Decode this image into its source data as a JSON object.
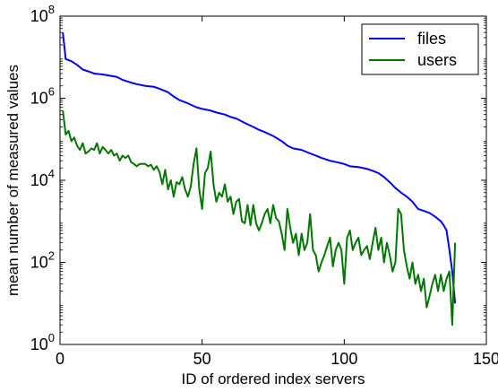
{
  "chart_data": {
    "type": "line",
    "title": "",
    "xlabel": "ID of ordered index servers",
    "ylabel": "mean number of measured values",
    "xlim": [
      0,
      150
    ],
    "ylim": [
      1,
      100000000
    ],
    "y_scale": "log",
    "grid": false,
    "legend_position": "top-right",
    "x_ticks": [
      {
        "value": 0,
        "label": "0"
      },
      {
        "value": 50,
        "label": "50"
      },
      {
        "value": 100,
        "label": "100"
      },
      {
        "value": 150,
        "label": "150"
      }
    ],
    "y_ticks": [
      {
        "value": 1,
        "base": "10",
        "exp": "0"
      },
      {
        "value": 100,
        "base": "10",
        "exp": "2"
      },
      {
        "value": 10000,
        "base": "10",
        "exp": "4"
      },
      {
        "value": 1000000,
        "base": "10",
        "exp": "6"
      },
      {
        "value": 100000000,
        "base": "10",
        "exp": "8"
      }
    ],
    "series": [
      {
        "name": "files",
        "color": "#0000ff",
        "points": [
          [
            1,
            40000000
          ],
          [
            2,
            9000000
          ],
          [
            4,
            8000000
          ],
          [
            6,
            6500000
          ],
          [
            8,
            5000000
          ],
          [
            10,
            4500000
          ],
          [
            12,
            4000000
          ],
          [
            15,
            3800000
          ],
          [
            18,
            3500000
          ],
          [
            20,
            3300000
          ],
          [
            22,
            2800000
          ],
          [
            25,
            2400000
          ],
          [
            27,
            2200000
          ],
          [
            30,
            2000000
          ],
          [
            33,
            1900000
          ],
          [
            35,
            1700000
          ],
          [
            38,
            1400000
          ],
          [
            40,
            1100000
          ],
          [
            42,
            900000
          ],
          [
            45,
            750000
          ],
          [
            48,
            600000
          ],
          [
            50,
            550000
          ],
          [
            53,
            500000
          ],
          [
            55,
            450000
          ],
          [
            58,
            400000
          ],
          [
            60,
            350000
          ],
          [
            62,
            320000
          ],
          [
            65,
            250000
          ],
          [
            68,
            200000
          ],
          [
            70,
            170000
          ],
          [
            72,
            150000
          ],
          [
            75,
            120000
          ],
          [
            78,
            90000
          ],
          [
            80,
            70000
          ],
          [
            82,
            60000
          ],
          [
            85,
            55000
          ],
          [
            88,
            45000
          ],
          [
            90,
            40000
          ],
          [
            92,
            35000
          ],
          [
            95,
            30000
          ],
          [
            97,
            28000
          ],
          [
            100,
            25000
          ],
          [
            102,
            22000
          ],
          [
            105,
            21000
          ],
          [
            108,
            19000
          ],
          [
            110,
            17000
          ],
          [
            112,
            15000
          ],
          [
            114,
            12000
          ],
          [
            116,
            9000
          ],
          [
            118,
            6500
          ],
          [
            120,
            5000
          ],
          [
            122,
            4000
          ],
          [
            124,
            3000
          ],
          [
            126,
            2000
          ],
          [
            128,
            1800
          ],
          [
            130,
            1600
          ],
          [
            132,
            1300
          ],
          [
            134,
            1000
          ],
          [
            135,
            800
          ],
          [
            136,
            600
          ],
          [
            137,
            200
          ],
          [
            138,
            60
          ],
          [
            139,
            10
          ]
        ]
      },
      {
        "name": "users",
        "color": "#007700",
        "points": [
          [
            1,
            500000
          ],
          [
            2,
            130000
          ],
          [
            3,
            160000
          ],
          [
            4,
            90000
          ],
          [
            5,
            110000
          ],
          [
            6,
            70000
          ],
          [
            7,
            55000
          ],
          [
            8,
            80000
          ],
          [
            9,
            45000
          ],
          [
            10,
            50000
          ],
          [
            11,
            60000
          ],
          [
            12,
            55000
          ],
          [
            13,
            80000
          ],
          [
            14,
            45000
          ],
          [
            15,
            65000
          ],
          [
            16,
            55000
          ],
          [
            17,
            45000
          ],
          [
            18,
            55000
          ],
          [
            19,
            40000
          ],
          [
            20,
            45000
          ],
          [
            21,
            30000
          ],
          [
            22,
            40000
          ],
          [
            23,
            35000
          ],
          [
            24,
            40000
          ],
          [
            25,
            28000
          ],
          [
            26,
            25000
          ],
          [
            27,
            22000
          ],
          [
            28,
            25000
          ],
          [
            29,
            25000
          ],
          [
            30,
            25000
          ],
          [
            31,
            22000
          ],
          [
            32,
            24000
          ],
          [
            33,
            18000
          ],
          [
            34,
            22000
          ],
          [
            35,
            16000
          ],
          [
            36,
            8000
          ],
          [
            37,
            18000
          ],
          [
            38,
            6000
          ],
          [
            39,
            10000
          ],
          [
            40,
            4000
          ],
          [
            41,
            9000
          ],
          [
            42,
            8000
          ],
          [
            43,
            12000
          ],
          [
            44,
            6000
          ],
          [
            45,
            4000
          ],
          [
            46,
            7000
          ],
          [
            47,
            25000
          ],
          [
            48,
            60000
          ],
          [
            49,
            6000
          ],
          [
            50,
            2000
          ],
          [
            51,
            15000
          ],
          [
            52,
            20000
          ],
          [
            53,
            50000
          ],
          [
            54,
            8000
          ],
          [
            55,
            3000
          ],
          [
            56,
            5000
          ],
          [
            57,
            4000
          ],
          [
            58,
            8000
          ],
          [
            59,
            3000
          ],
          [
            60,
            4000
          ],
          [
            61,
            1500
          ],
          [
            62,
            3000
          ],
          [
            63,
            3500
          ],
          [
            64,
            1000
          ],
          [
            65,
            900
          ],
          [
            66,
            2500
          ],
          [
            67,
            800
          ],
          [
            68,
            2500
          ],
          [
            69,
            900
          ],
          [
            70,
            600
          ],
          [
            71,
            900
          ],
          [
            72,
            1500
          ],
          [
            73,
            2000
          ],
          [
            74,
            900
          ],
          [
            75,
            2500
          ],
          [
            76,
            1200
          ],
          [
            77,
            1000
          ],
          [
            78,
            500
          ],
          [
            79,
            200
          ],
          [
            80,
            2000
          ],
          [
            81,
            700
          ],
          [
            82,
            300
          ],
          [
            83,
            500
          ],
          [
            84,
            150
          ],
          [
            85,
            500
          ],
          [
            86,
            200
          ],
          [
            87,
            300
          ],
          [
            88,
            1500
          ],
          [
            89,
            200
          ],
          [
            90,
            150
          ],
          [
            91,
            60
          ],
          [
            92,
            100
          ],
          [
            93,
            150
          ],
          [
            94,
            250
          ],
          [
            95,
            400
          ],
          [
            96,
            80
          ],
          [
            97,
            200
          ],
          [
            98,
            300
          ],
          [
            99,
            200
          ],
          [
            100,
            30
          ],
          [
            101,
            400
          ],
          [
            102,
            600
          ],
          [
            103,
            200
          ],
          [
            104,
            300
          ],
          [
            105,
            400
          ],
          [
            106,
            150
          ],
          [
            107,
            200
          ],
          [
            108,
            250
          ],
          [
            109,
            120
          ],
          [
            110,
            300
          ],
          [
            111,
            700
          ],
          [
            112,
            200
          ],
          [
            113,
            400
          ],
          [
            114,
            100
          ],
          [
            115,
            300
          ],
          [
            116,
            150
          ],
          [
            117,
            60
          ],
          [
            118,
            100
          ],
          [
            119,
            2000
          ],
          [
            120,
            1500
          ],
          [
            121,
            200
          ],
          [
            122,
            80
          ],
          [
            123,
            40
          ],
          [
            124,
            100
          ],
          [
            125,
            30
          ],
          [
            126,
            50
          ],
          [
            127,
            20
          ],
          [
            128,
            40
          ],
          [
            129,
            8
          ],
          [
            130,
            15
          ],
          [
            131,
            30
          ],
          [
            132,
            50
          ],
          [
            133,
            20
          ],
          [
            134,
            50
          ],
          [
            135,
            20
          ],
          [
            136,
            40
          ],
          [
            137,
            60
          ],
          [
            138,
            3
          ],
          [
            139,
            300
          ]
        ]
      }
    ]
  }
}
